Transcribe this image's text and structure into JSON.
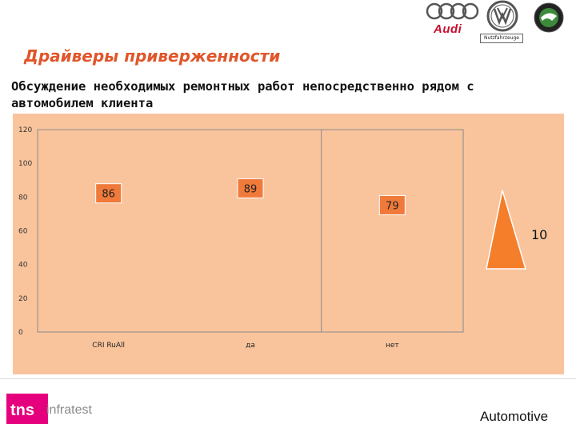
{
  "header": {
    "title": "Драйверы приверженности",
    "subtitle": "Обсуждение необходимых ремонтных работ непосредственно рядом с автомобилем клиента"
  },
  "brands": {
    "audi_text": "Audi",
    "nutzfahrzeuge_text": "Nutzfahrzeuge"
  },
  "chart_data": {
    "type": "bar",
    "categories": [
      "CRI RuAll",
      "да",
      "нет"
    ],
    "values": [
      86,
      89,
      79
    ],
    "data_labels": [
      "86",
      "89",
      "79"
    ],
    "y_ticks": [
      "120",
      "100",
      "80",
      "60",
      "40",
      "20",
      "0"
    ],
    "ylim": [
      0,
      120
    ],
    "side_indicator_value": "10",
    "colors": {
      "panel": "#f9c49c",
      "label_box": "#f07a3a",
      "triangle": "#f57e2a"
    }
  },
  "footer": {
    "tns_text": "infratest",
    "label": "Automotive"
  }
}
